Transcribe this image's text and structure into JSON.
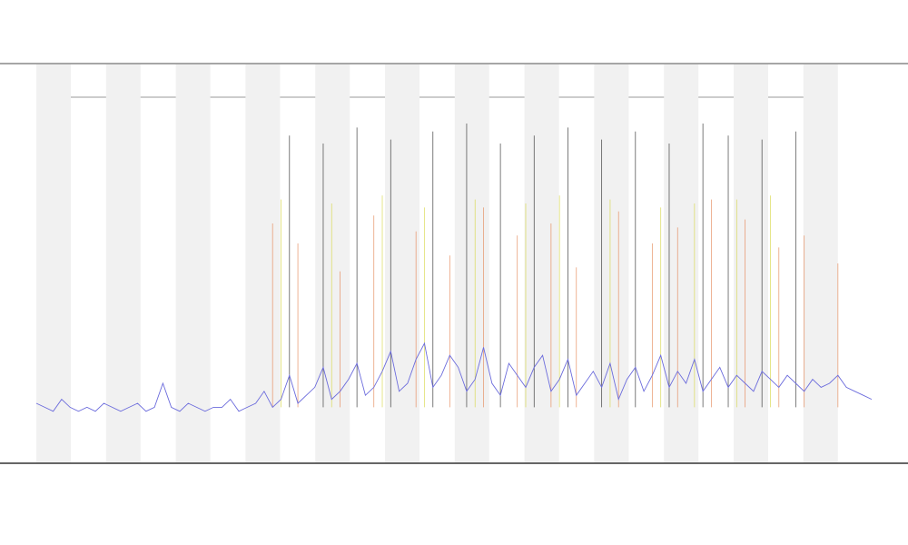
{
  "chart_data": {
    "type": "line",
    "xlim": [
      0,
      99
    ],
    "ylim": [
      0,
      100
    ],
    "series": [
      {
        "color": "#6b6bdc",
        "values": [
          15,
          14,
          13,
          16,
          14,
          13,
          14,
          13,
          15,
          14,
          13,
          14,
          15,
          13,
          14,
          20,
          14,
          13,
          15,
          14,
          13,
          14,
          14,
          16,
          13,
          14,
          15,
          18,
          14,
          16,
          22,
          15,
          17,
          19,
          24,
          16,
          18,
          21,
          25,
          17,
          19,
          23,
          28,
          18,
          20,
          26,
          30,
          19,
          22,
          27,
          24,
          18,
          21,
          29,
          20,
          17,
          25,
          22,
          19,
          24,
          27,
          18,
          21,
          26,
          17,
          20,
          23,
          19,
          25,
          16,
          21,
          24,
          18,
          22,
          27,
          19,
          23,
          20,
          26,
          18,
          21,
          24,
          19,
          22,
          20,
          18,
          23,
          21,
          19,
          22,
          20,
          18,
          21,
          19,
          20,
          22,
          19,
          18,
          17,
          16
        ]
      }
    ],
    "events": [
      {
        "color": "#e58a5a",
        "x": [
          28,
          31,
          36,
          40,
          45,
          49,
          53,
          57,
          61,
          64,
          69,
          73,
          76,
          80,
          84,
          88,
          91,
          95
        ],
        "values": [
          60,
          55,
          48,
          62,
          58,
          52,
          64,
          57,
          60,
          49,
          63,
          55,
          59,
          66,
          61,
          54,
          57,
          50
        ]
      },
      {
        "color": "#333333",
        "x": [
          30,
          34,
          38,
          42,
          47,
          51,
          55,
          59,
          63,
          67,
          71,
          75,
          79,
          82,
          86,
          90
        ],
        "values": [
          82,
          80,
          84,
          81,
          83,
          85,
          80,
          82,
          84,
          81,
          83,
          80,
          85,
          82,
          81,
          83
        ]
      },
      {
        "color": "#d8d84a",
        "x": [
          29,
          35,
          41,
          46,
          52,
          58,
          62,
          68,
          74,
          78,
          83,
          87
        ],
        "values": [
          66,
          65,
          67,
          64,
          66,
          65,
          67,
          66,
          64,
          65,
          66,
          67
        ]
      }
    ]
  }
}
